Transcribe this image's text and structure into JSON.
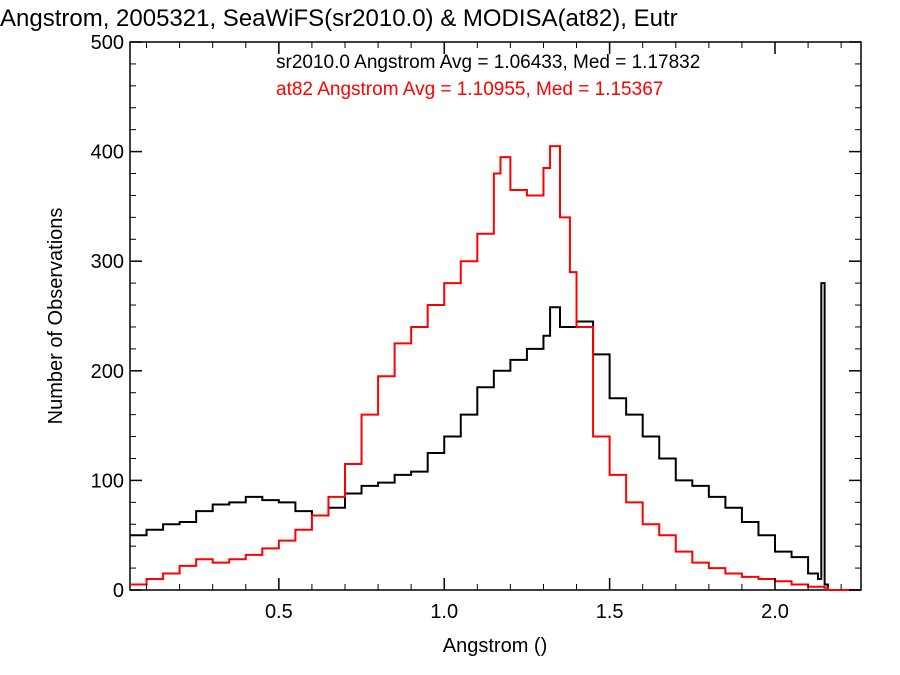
{
  "chart_data": {
    "type": "line",
    "title": "Angstrom, 2005321, SeaWiFS(sr2010.0) & MODISA(at82), Eutr",
    "xlabel": "Angstrom ()",
    "ylabel": "Number of Observations",
    "xlim": [
      0.05,
      2.26
    ],
    "ylim": [
      0,
      500
    ],
    "xticks": [
      0.5,
      1.0,
      1.5,
      2.0
    ],
    "xtick_labels": [
      "0.5",
      "1.0",
      "1.5",
      "2.0"
    ],
    "yticks": [
      0,
      100,
      200,
      300,
      400,
      500
    ],
    "ytick_labels": [
      "0",
      "100",
      "200",
      "300",
      "400",
      "500"
    ],
    "grid": false,
    "step": true,
    "annotations": [
      {
        "text": "sr2010.0 Angstrom Avg = 1.06433, Med = 1.17832",
        "color": "#000000"
      },
      {
        "text": "at82 Angstrom Avg = 1.10955, Med = 1.15367",
        "color": "#ff0000"
      }
    ],
    "series": [
      {
        "color": "#000000",
        "x": [
          0.05,
          0.1,
          0.15,
          0.2,
          0.25,
          0.3,
          0.35,
          0.4,
          0.45,
          0.5,
          0.55,
          0.6,
          0.65,
          0.7,
          0.75,
          0.8,
          0.85,
          0.9,
          0.95,
          1.0,
          1.05,
          1.1,
          1.15,
          1.2,
          1.25,
          1.3,
          1.32,
          1.35,
          1.4,
          1.45,
          1.5,
          1.55,
          1.6,
          1.65,
          1.7,
          1.75,
          1.8,
          1.85,
          1.9,
          1.95,
          2.0,
          2.05,
          2.1,
          2.13,
          2.14,
          2.15,
          2.16,
          2.26
        ],
        "y": [
          50,
          55,
          60,
          62,
          72,
          78,
          80,
          85,
          82,
          80,
          72,
          68,
          75,
          88,
          95,
          98,
          105,
          108,
          125,
          140,
          160,
          185,
          200,
          210,
          220,
          232,
          258,
          240,
          245,
          215,
          175,
          160,
          140,
          120,
          100,
          95,
          85,
          75,
          62,
          50,
          35,
          30,
          15,
          10,
          280,
          5,
          0,
          0
        ]
      },
      {
        "color": "#ff0000",
        "x": [
          0.05,
          0.1,
          0.15,
          0.2,
          0.25,
          0.3,
          0.35,
          0.4,
          0.45,
          0.5,
          0.55,
          0.6,
          0.65,
          0.7,
          0.75,
          0.8,
          0.85,
          0.9,
          0.95,
          1.0,
          1.05,
          1.1,
          1.15,
          1.17,
          1.2,
          1.25,
          1.3,
          1.32,
          1.35,
          1.38,
          1.4,
          1.45,
          1.5,
          1.55,
          1.6,
          1.65,
          1.7,
          1.75,
          1.8,
          1.85,
          1.9,
          1.95,
          2.0,
          2.05,
          2.1,
          2.15,
          2.16,
          2.26
        ],
        "y": [
          5,
          10,
          15,
          22,
          28,
          25,
          28,
          32,
          38,
          45,
          55,
          68,
          85,
          115,
          160,
          195,
          225,
          240,
          260,
          280,
          300,
          325,
          380,
          395,
          365,
          360,
          385,
          405,
          340,
          290,
          240,
          140,
          105,
          80,
          60,
          50,
          35,
          25,
          20,
          15,
          12,
          10,
          8,
          5,
          3,
          2,
          0,
          0
        ]
      }
    ]
  }
}
